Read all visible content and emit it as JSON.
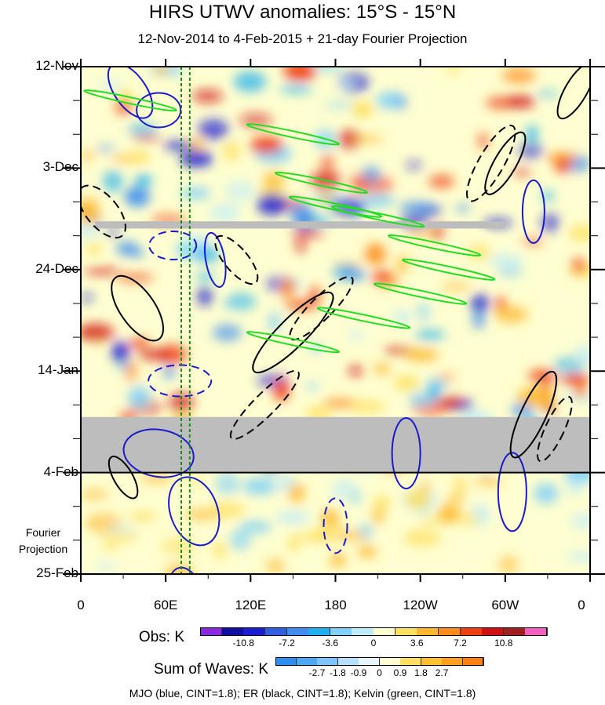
{
  "chart_data": {
    "type": "heatmap",
    "title": "HIRS UTWV anomalies: 15°S - 15°N",
    "subtitle": "12-Nov-2014 to 4-Feb-2015 + 21-day Fourier Projection",
    "x_ticks": [
      "0",
      "60E",
      "120E",
      "180",
      "120W",
      "60W",
      "0"
    ],
    "x_tick_values": [
      0,
      60,
      120,
      180,
      240,
      300,
      360
    ],
    "y_ticks": [
      "12-Nov",
      "3-Dec",
      "24-Dec",
      "14-Jan",
      "4-Feb",
      "25-Feb"
    ],
    "y_tick_days": [
      0,
      21,
      42,
      63,
      84,
      105
    ],
    "projection_label_line1": "Fourier",
    "projection_label_line2": "Projection",
    "missing_data_bands_days": [
      [
        32,
        33.5
      ],
      [
        72.5,
        84
      ]
    ],
    "obs_colorbar": {
      "label": "Obs: K",
      "tick_labels": [
        "-10.8",
        "-7.2",
        "-3.6",
        "0",
        "3.6",
        "7.2",
        "10.8"
      ],
      "colors": [
        "#8a2be2",
        "#1010a0",
        "#1c1cd0",
        "#3060e0",
        "#3d8ef0",
        "#20b0f0",
        "#80d0f8",
        "#c0ecfa",
        "#fefed0",
        "#fde060",
        "#fdb830",
        "#fd8c1c",
        "#f04010",
        "#d01010",
        "#a02020",
        "#f060c0"
      ]
    },
    "waves_colorbar": {
      "label": "Sum of Waves: K",
      "tick_labels": [
        "-2.7",
        "-1.8",
        "-0.9",
        "0",
        "0.9",
        "1.8",
        "2.7"
      ],
      "colors": [
        "#2c8ef0",
        "#4aa8f4",
        "#7ec4f8",
        "#b8e0fa",
        "#e6f6fc",
        "#fefed0",
        "#fde060",
        "#fdc030",
        "#fda020",
        "#fd8010"
      ]
    },
    "contours": [
      {
        "name": "MJO",
        "color": "#1a1acc"
      },
      {
        "name": "ER",
        "color": "#000000"
      },
      {
        "name": "Kelvin",
        "color": "#22dd22"
      }
    ],
    "footer": "MJO (blue, CINT=1.8); ER (black, CINT=1.8); Kelvin (green, CINT=1.8)"
  }
}
